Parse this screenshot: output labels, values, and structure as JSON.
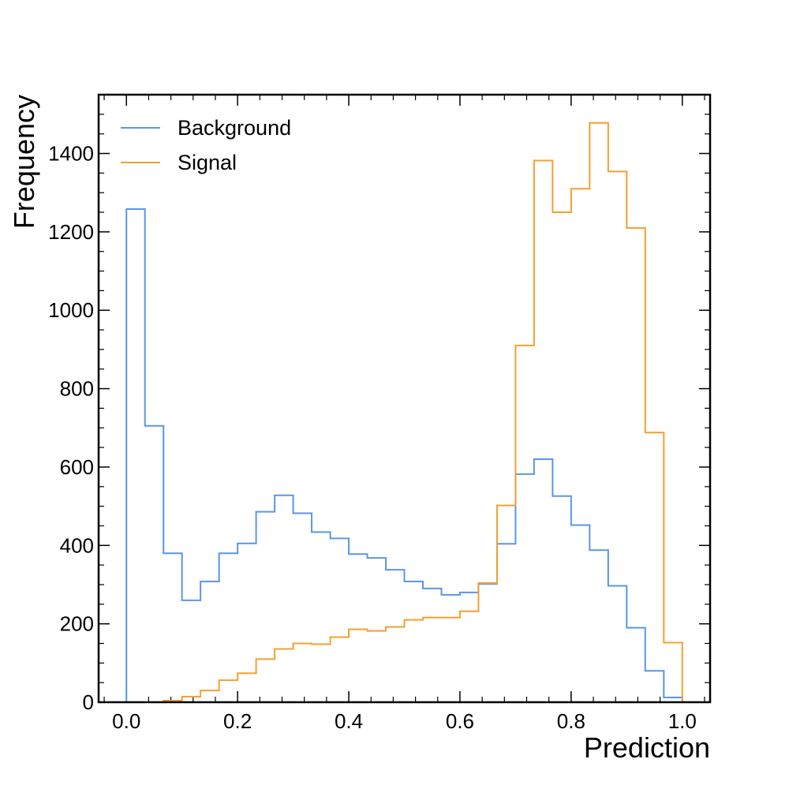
{
  "chart_data": {
    "type": "histogram",
    "xlabel": "Prediction",
    "ylabel": "Frequency",
    "xlim": [
      -0.05,
      1.05
    ],
    "ylim": [
      0,
      1550
    ],
    "bin_edges": [
      0.0,
      0.0333,
      0.0667,
      0.1,
      0.1333,
      0.1667,
      0.2,
      0.2333,
      0.2667,
      0.3,
      0.3333,
      0.3667,
      0.4,
      0.4333,
      0.4667,
      0.5,
      0.5333,
      0.5667,
      0.6,
      0.6333,
      0.6667,
      0.7,
      0.7333,
      0.7667,
      0.8,
      0.8333,
      0.8667,
      0.9,
      0.9333,
      0.9667,
      1.0
    ],
    "x_ticks": [
      "0.0",
      "0.2",
      "0.4",
      "0.6",
      "0.8",
      "1.0"
    ],
    "y_ticks": [
      "0",
      "200",
      "400",
      "600",
      "800",
      "1000",
      "1200",
      "1400"
    ],
    "legend_position": "top-left",
    "series": [
      {
        "name": "Background",
        "color": "#5a96e6",
        "values": [
          1258,
          705,
          380,
          260,
          308,
          380,
          405,
          486,
          528,
          482,
          434,
          418,
          378,
          368,
          338,
          308,
          290,
          274,
          280,
          302,
          404,
          582,
          620,
          526,
          452,
          388,
          297,
          190,
          80,
          12
        ]
      },
      {
        "name": "Signal",
        "color": "#f5a030",
        "values": [
          0,
          0,
          4,
          14,
          30,
          56,
          74,
          110,
          136,
          150,
          148,
          166,
          186,
          182,
          192,
          210,
          216,
          216,
          232,
          304,
          502,
          910,
          1382,
          1250,
          1310,
          1478,
          1354,
          1210,
          688,
          152
        ]
      }
    ]
  }
}
